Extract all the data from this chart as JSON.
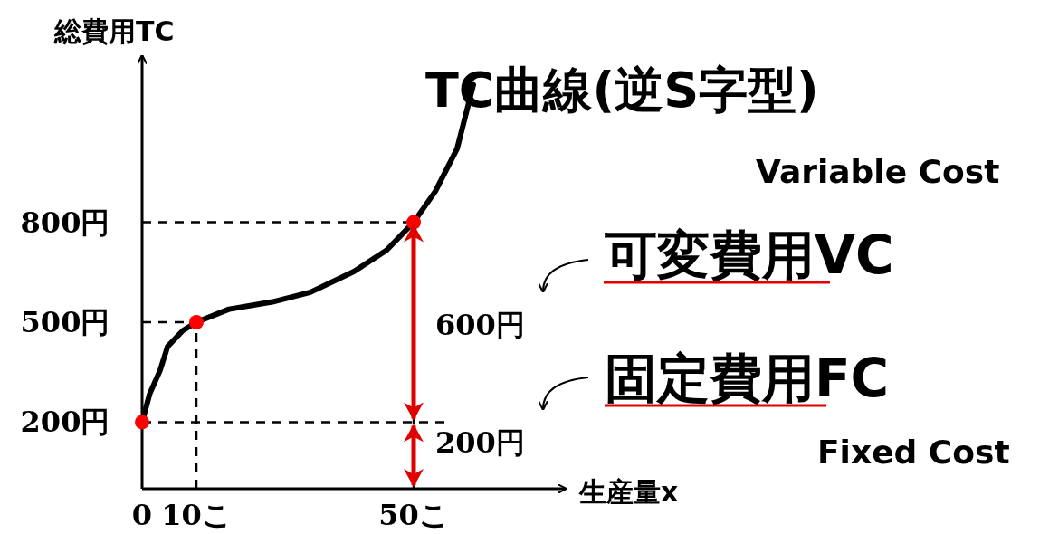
{
  "chart_data": {
    "type": "line",
    "ylabel": "総費用TC",
    "xlabel": "生産量x",
    "xlim": [
      0,
      78
    ],
    "ylim": [
      0,
      1300
    ],
    "xticks": [
      {
        "value": 0,
        "label": "0"
      },
      {
        "value": 10,
        "label": "10こ"
      },
      {
        "value": 50,
        "label": "50こ"
      }
    ],
    "yticks": [
      {
        "value": 200,
        "label": "200円"
      },
      {
        "value": 500,
        "label": "500円"
      },
      {
        "value": 800,
        "label": "800円"
      }
    ],
    "series": [
      {
        "color": "#000000",
        "x": [
          0,
          1.4,
          3.3,
          4.7,
          7.5,
          10,
          16,
          24,
          31,
          39,
          45,
          50,
          54,
          58,
          61
        ],
        "values": [
          200,
          285,
          355,
          427,
          475,
          500,
          539,
          561,
          590,
          652,
          716,
          800,
          893,
          1021,
          1213
        ]
      },
      {
        "type": "scatter",
        "color": "#ff0000",
        "marker": "circle",
        "x": [
          0,
          10,
          50
        ],
        "values": [
          200,
          500,
          800
        ]
      }
    ],
    "ref_lines": [
      {
        "axis": "y",
        "value": 200,
        "color": "#000000",
        "line_style": "dashed"
      },
      {
        "axis": "y",
        "value": 500,
        "color": "#000000",
        "line_style": "dashed"
      },
      {
        "axis": "y",
        "value": 800,
        "color": "#000000",
        "line_style": "dashed"
      },
      {
        "axis": "x",
        "value": 10,
        "color": "#000000",
        "line_style": "dashed"
      },
      {
        "axis": "x",
        "value": 50,
        "color": "#000000",
        "line_style": "dashed"
      }
    ],
    "annotations": [
      "TC曲線(逆S字型)",
      "Variable Cost",
      "可変費用VC",
      "600円",
      "固定費用FC",
      "200円",
      "Fixed Cost"
    ]
  }
}
